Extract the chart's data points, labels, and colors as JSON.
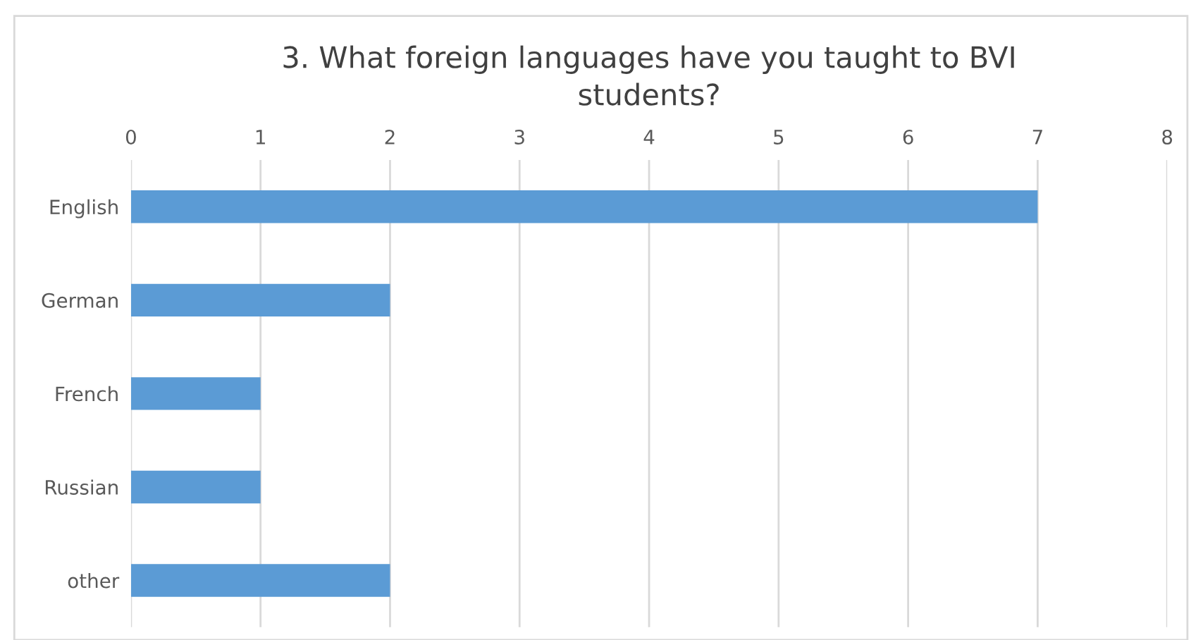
{
  "chart_data": {
    "type": "bar",
    "orientation": "horizontal",
    "title": "3. What foreign languages have you taught to BVI\nstudents?",
    "categories": [
      "English",
      "German",
      "French",
      "Russian",
      "other"
    ],
    "values": [
      7,
      2,
      1,
      1,
      2
    ],
    "color": "#5b9bd5",
    "xlim": [
      0,
      8
    ],
    "xticks": [
      0,
      1,
      2,
      3,
      4,
      5,
      6,
      7,
      8
    ],
    "grid": "x"
  }
}
